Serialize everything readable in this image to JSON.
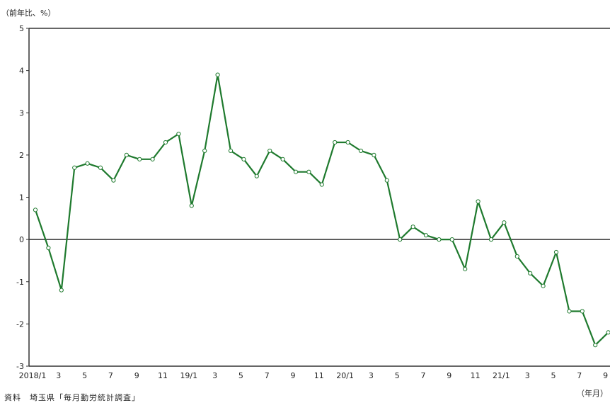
{
  "chart_data": {
    "type": "line",
    "ylabel": "（前年比、%）",
    "xlabel": "（年月）",
    "ylim": [
      -3,
      5
    ],
    "yticks": [
      "5",
      "4",
      "3",
      "2",
      "1",
      "0",
      "-1",
      "-2",
      "-3"
    ],
    "x_tick_labels": [
      "2018/1",
      "3",
      "5",
      "7",
      "9",
      "11",
      "19/1",
      "3",
      "5",
      "7",
      "9",
      "11",
      "20/1",
      "3",
      "5",
      "7",
      "9",
      "11",
      "21/1",
      "3",
      "5",
      "7",
      "9"
    ],
    "x": [
      "2018/1",
      "2018/2",
      "2018/3",
      "2018/4",
      "2018/5",
      "2018/6",
      "2018/7",
      "2018/8",
      "2018/9",
      "2018/10",
      "2018/11",
      "2018/12",
      "2019/1",
      "2019/2",
      "2019/3",
      "2019/4",
      "2019/5",
      "2019/6",
      "2019/7",
      "2019/8",
      "2019/9",
      "2019/10",
      "2019/11",
      "2019/12",
      "2020/1",
      "2020/2",
      "2020/3",
      "2020/4",
      "2020/5",
      "2020/6",
      "2020/7",
      "2020/8",
      "2020/9",
      "2020/10",
      "2020/11",
      "2020/12",
      "2021/1",
      "2021/2",
      "2021/3",
      "2021/4",
      "2021/5",
      "2021/6",
      "2021/7",
      "2021/8",
      "2021/9"
    ],
    "series": [
      {
        "values": [
          0.7,
          -0.2,
          -1.2,
          1.7,
          1.8,
          1.7,
          1.4,
          2.0,
          1.9,
          1.9,
          2.3,
          2.5,
          0.8,
          2.1,
          3.9,
          2.1,
          1.9,
          1.5,
          2.1,
          1.9,
          1.6,
          1.6,
          1.3,
          2.3,
          2.3,
          2.1,
          2.0,
          1.4,
          0.0,
          0.3,
          0.1,
          0.0,
          0.0,
          -0.7,
          0.9,
          0.0,
          0.4,
          -0.4,
          -0.8,
          -1.1,
          -0.3,
          -1.7,
          -1.7,
          -2.5,
          -2.2
        ]
      }
    ],
    "colors": {
      "line": "#1f7a2e",
      "marker_fill": "#ffffff",
      "zero_line": "#333333"
    }
  },
  "source_note": "資料　埼玉県「毎月勤労統計調査」"
}
